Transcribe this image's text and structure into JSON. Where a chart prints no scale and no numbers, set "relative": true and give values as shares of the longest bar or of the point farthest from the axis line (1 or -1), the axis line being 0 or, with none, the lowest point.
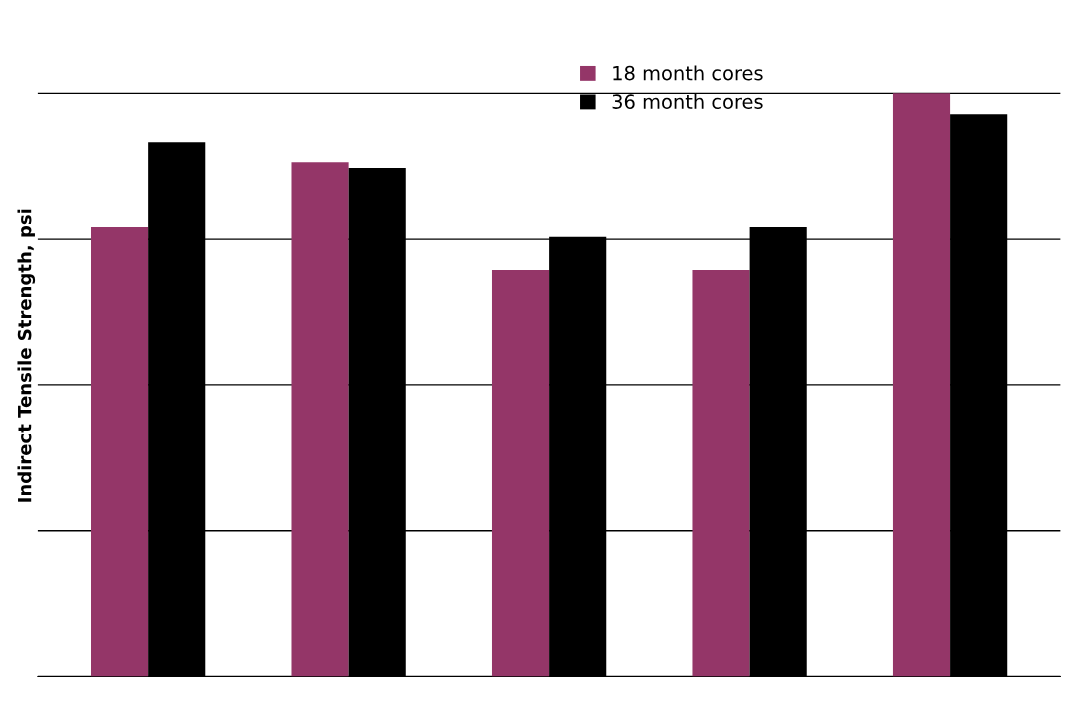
{
  "chart_data": {
    "type": "bar",
    "ylabel": "Indirect Tensile Strength, psi",
    "relative": true,
    "grid": "y",
    "legend": "top",
    "categories": [
      null,
      null,
      null,
      null,
      null
    ],
    "series": [
      {
        "name": "18 month cores",
        "color": "#943668",
        "values": [
          0.771,
          0.882,
          0.697,
          0.697,
          1
        ]
      },
      {
        "name": "36 month cores",
        "color": "#000000",
        "values": [
          0.916,
          0.872,
          0.754,
          0.771,
          0.964
        ]
      }
    ]
  }
}
